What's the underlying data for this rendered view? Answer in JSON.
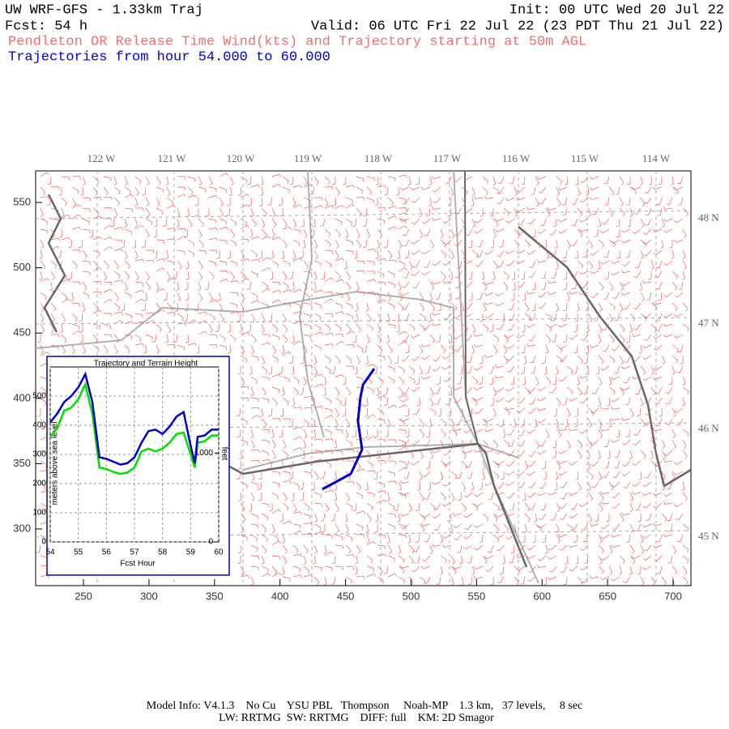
{
  "header": {
    "title": "UW WRF-GFS - 1.33km Traj",
    "fcst": "Fcst:   54 h",
    "init": "Init: 00 UTC Wed 20 Jul 22",
    "valid": "Valid: 06 UTC Fri 22 Jul 22 (23 PDT Thu 21 Jul 22)",
    "subtitle": "Pendleton OR Release Time Wind(kts) and Trajectory starting at 50m AGL",
    "traj_range": "Trajectories from hour  54.000 to  60.000"
  },
  "map": {
    "xlim": [
      213.5,
      713.6
    ],
    "ylim": [
      256.6,
      574.2
    ],
    "xticks": [
      250,
      300,
      350,
      400,
      450,
      500,
      550,
      600,
      650,
      700
    ],
    "yticks": [
      300,
      350,
      400,
      450,
      500,
      550
    ],
    "lon_labels": [
      "122 W",
      "121 W",
      "120 W",
      "119 W",
      "118 W",
      "117 W",
      "116 W",
      "115 W",
      "114 W"
    ],
    "lat_labels": [
      "48 N",
      "47 N",
      "46 N",
      "45 N"
    ],
    "trajectory": {
      "color": "#0000cc",
      "x": [
        432.3,
        454.0,
        462.6,
        459.5,
        461.4,
        463.3,
        471.9
      ],
      "y": [
        330.4,
        342.2,
        360.8,
        382.5,
        401.1,
        410.4,
        422.8
      ]
    }
  },
  "chart_data": {
    "type": "line",
    "title": "Trajectory and Terrain Height",
    "x_label": "Fcst Hour",
    "y_label": "meters above sea level",
    "y2_label": "feet",
    "xlim": [
      54,
      60
    ],
    "xticks": [
      54,
      55,
      56,
      57,
      58,
      59,
      60
    ],
    "ylim": [
      0,
      600
    ],
    "yticks": [
      0,
      100,
      200,
      300,
      400,
      500
    ],
    "y2lim": [
      0,
      1968.5
    ],
    "y2ticks": [
      0,
      1000
    ],
    "grid": true,
    "x": [
      54,
      54.25,
      54.5,
      54.75,
      55,
      55.25,
      55.5,
      55.75,
      56,
      56.25,
      56.5,
      56.75,
      57,
      57.25,
      57.5,
      57.75,
      58,
      58.25,
      58.5,
      58.75,
      59,
      59.15,
      59.25,
      59.5,
      59.75,
      60
    ],
    "series": [
      {
        "color": "#00e000",
        "values": [
          360,
          390,
          450,
          460,
          490,
          540,
          440,
          255,
          250,
          240,
          233,
          238,
          255,
          310,
          320,
          310,
          320,
          340,
          370,
          375,
          300,
          255,
          340,
          345,
          365,
          365
        ]
      },
      {
        "color": "#0000cc",
        "values": [
          410,
          440,
          480,
          500,
          530,
          575,
          480,
          290,
          285,
          275,
          265,
          270,
          290,
          340,
          380,
          385,
          370,
          395,
          430,
          445,
          330,
          270,
          360,
          365,
          385,
          385
        ]
      }
    ]
  },
  "footer": {
    "line1": "Model Info: V4.1.3    No Cu    YSU PBL   Thompson     Noah-MP    1.3 km,   37 levels,     8 sec",
    "line2": "LW: RRTMG  SW: RRTMG    DIFF: full    KM: 2D Smagor"
  }
}
